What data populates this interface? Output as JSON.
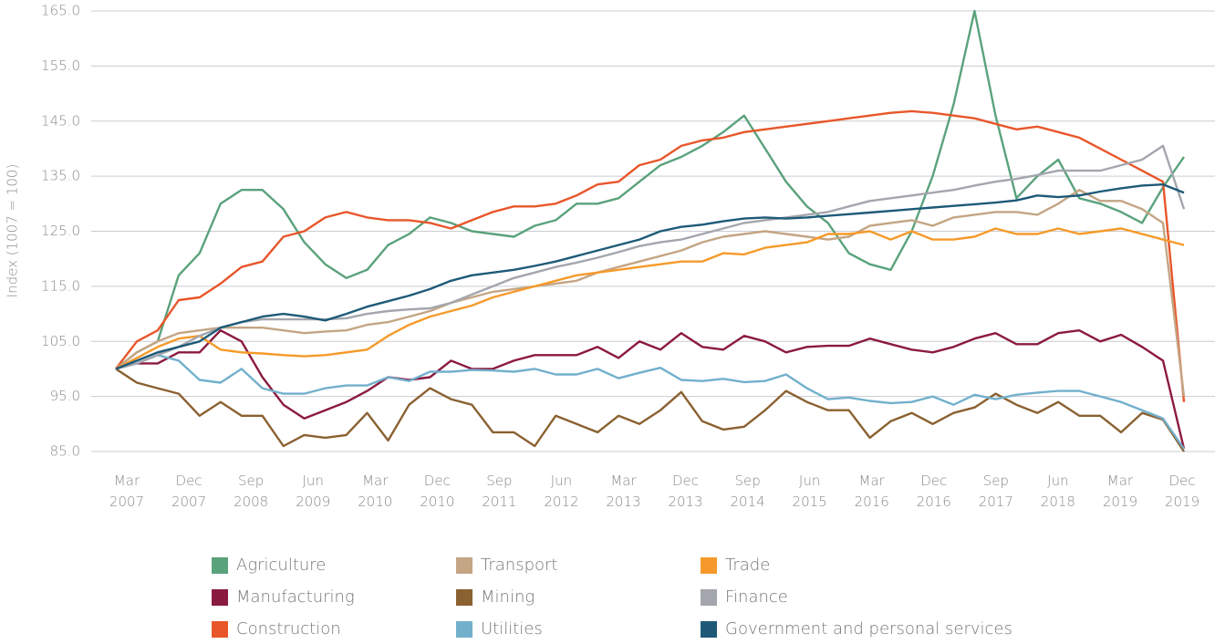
{
  "chart_data": {
    "type": "line",
    "ylabel": "Index (1007 = 100)",
    "categories": [
      "Mar 2007",
      null,
      null,
      "Dec 2007",
      null,
      null,
      "Sep 2008",
      null,
      null,
      "Jun 2009",
      null,
      null,
      "Mar 2010",
      null,
      null,
      "Dec 2010",
      null,
      null,
      "Sep 2011",
      null,
      null,
      "Jun 2012",
      null,
      null,
      "Mar 2013",
      null,
      null,
      "Dec 2013",
      null,
      null,
      "Sep 2014",
      null,
      null,
      "Jun 2015",
      null,
      null,
      "Mar 2016",
      null,
      null,
      "Dec 2016",
      null,
      null,
      "Sep 2017",
      null,
      null,
      "Jun 2018",
      null,
      null,
      "Mar 2019",
      null,
      null,
      "Dec 2019"
    ],
    "ylim": [
      85,
      165
    ],
    "yticks": [
      {
        "value": 85,
        "label": "85.0"
      },
      {
        "value": 95,
        "label": "95.0"
      },
      {
        "value": 105,
        "label": "105.0"
      },
      {
        "value": 115,
        "label": "115.0"
      },
      {
        "value": 125,
        "label": "125.0"
      },
      {
        "value": 135,
        "label": "135.0"
      },
      {
        "value": 145,
        "label": "145.0"
      },
      {
        "value": 155,
        "label": "155.0"
      },
      {
        "value": 165,
        "label": "165.0"
      }
    ],
    "grid": true,
    "series": [
      {
        "name": "Agriculture",
        "color": "#5aa27c",
        "values": [
          100,
          103,
          105,
          117,
          121,
          130,
          132.5,
          132.5,
          129,
          123,
          119,
          116.5,
          118,
          122.5,
          124.5,
          127.5,
          126.5,
          125,
          124.5,
          124,
          126,
          127,
          130,
          130,
          131,
          134,
          137,
          138.5,
          140.5,
          143,
          146,
          140,
          134,
          129.5,
          126.5,
          121,
          119,
          118,
          125,
          135,
          148,
          165,
          146,
          131,
          135,
          138,
          131,
          130,
          128.5,
          126.5,
          133,
          138.5
        ]
      },
      {
        "name": "Manufacturing",
        "color": "#8b1a3f",
        "values": [
          100,
          101,
          101,
          103,
          103,
          107,
          105,
          98.5,
          93.5,
          91,
          92.5,
          94,
          96,
          98.5,
          98,
          98.5,
          101.5,
          100,
          100,
          101.5,
          102.5,
          102.5,
          102.5,
          104,
          102,
          105,
          103.5,
          106.5,
          104,
          103.5,
          106,
          105,
          103,
          104,
          104.2,
          104.2,
          105.5,
          104.5,
          103.5,
          103,
          104,
          105.5,
          106.5,
          104.5,
          104.5,
          106.5,
          107,
          105,
          106.2,
          104,
          101.5,
          85.5
        ]
      },
      {
        "name": "Construction",
        "color": "#e8562a",
        "values": [
          100,
          105,
          107,
          112.5,
          113,
          115.5,
          118.5,
          119.5,
          124,
          125,
          127.5,
          128.5,
          127.5,
          127,
          127,
          126.5,
          125.5,
          127,
          128.5,
          129.5,
          129.5,
          130,
          131.5,
          133.5,
          134,
          137,
          138,
          140.5,
          141.5,
          142,
          143,
          143.5,
          144,
          144.5,
          145,
          145.5,
          146,
          146.5,
          146.8,
          146.5,
          146,
          145.5,
          144.5,
          143.5,
          144,
          143,
          142,
          140,
          138,
          136,
          134,
          94
        ]
      },
      {
        "name": "Transport",
        "color": "#c4a584",
        "values": [
          100,
          103,
          105,
          106.5,
          107,
          107.5,
          107.5,
          107.5,
          107,
          106.5,
          106.8,
          107,
          108,
          108.5,
          109.5,
          110.5,
          112,
          113,
          114,
          114.5,
          115,
          115.5,
          116,
          117.5,
          118.5,
          119.5,
          120.5,
          121.5,
          123,
          124,
          124.5,
          125,
          124.5,
          124,
          123.5,
          124,
          126,
          126.5,
          127,
          126,
          127.5,
          128,
          128.5,
          128.5,
          128,
          130,
          132.5,
          130.5,
          130.5,
          129,
          126.5,
          95
        ]
      },
      {
        "name": "Mining",
        "color": "#8a6131",
        "values": [
          100,
          97.5,
          96.5,
          95.5,
          91.5,
          94,
          91.5,
          91.5,
          86,
          88,
          87.5,
          88,
          92,
          87,
          93.5,
          96.5,
          94.5,
          93.5,
          88.5,
          88.5,
          86,
          91.5,
          90,
          88.5,
          91.5,
          90,
          92.5,
          95.8,
          90.5,
          89,
          89.5,
          92.5,
          96,
          94,
          92.5,
          92.5,
          87.5,
          90.5,
          92,
          90,
          92,
          93,
          95.5,
          93.5,
          92,
          94,
          91.5,
          91.5,
          88.5,
          92,
          90.8,
          85
        ]
      },
      {
        "name": "Utilities",
        "color": "#72b0cc",
        "values": [
          100,
          101,
          102.5,
          101.5,
          98,
          97.5,
          100,
          96.5,
          95.5,
          95.5,
          96.5,
          97,
          97,
          98.5,
          97.8,
          99.5,
          99.5,
          99.8,
          99.7,
          99.5,
          100,
          99,
          99,
          100,
          98.3,
          99.3,
          100.2,
          98,
          97.8,
          98.2,
          97.6,
          97.8,
          99,
          96.5,
          94.5,
          94.8,
          94.2,
          93.8,
          94,
          95,
          93.5,
          95.3,
          94.5,
          95.3,
          95.7,
          96,
          96,
          95,
          94,
          92.5,
          91,
          85.5
        ]
      },
      {
        "name": "Trade",
        "color": "#f59a2a",
        "values": [
          100,
          102,
          104,
          105.5,
          106,
          103.5,
          103,
          102.8,
          102.5,
          102.3,
          102.5,
          103,
          103.5,
          106,
          108,
          109.5,
          110.5,
          111.5,
          113,
          114,
          115,
          116,
          117,
          117.5,
          118,
          118.5,
          119,
          119.5,
          119.5,
          121,
          120.8,
          122,
          122.5,
          123,
          124.5,
          124.5,
          125,
          123.5,
          125,
          123.5,
          123.5,
          124,
          125.5,
          124.5,
          124.5,
          125.5,
          124.5,
          125,
          125.5,
          124.5,
          123.5,
          122.5
        ]
      },
      {
        "name": "Finance",
        "color": "#a3a6ad",
        "values": [
          100,
          101,
          102.5,
          104,
          106,
          107.5,
          108.5,
          109,
          109,
          109,
          109,
          109.2,
          110,
          110.5,
          110.8,
          111,
          112,
          113.5,
          115,
          116.5,
          117.5,
          118.5,
          119.3,
          120.2,
          121.2,
          122.3,
          123,
          123.5,
          124.5,
          125.5,
          126.5,
          127,
          127.5,
          128,
          128.5,
          129.5,
          130.5,
          131,
          131.5,
          132,
          132.5,
          133.3,
          134,
          134.5,
          135.2,
          136,
          136,
          136,
          137,
          138,
          140.5,
          129
        ]
      },
      {
        "name": "Government and personal services",
        "color": "#1e5a78",
        "values": [
          100,
          101.5,
          103,
          104,
          105,
          107.5,
          108.5,
          109.5,
          110,
          109.5,
          108.8,
          110,
          111.3,
          112.3,
          113.3,
          114.5,
          116,
          117,
          117.5,
          118,
          118.7,
          119.5,
          120.5,
          121.5,
          122.5,
          123.5,
          125,
          125.8,
          126.2,
          126.8,
          127.3,
          127.5,
          127.3,
          127.5,
          127.8,
          128.1,
          128.4,
          128.7,
          129,
          129.3,
          129.6,
          129.9,
          130.2,
          130.6,
          131.5,
          131.2,
          131.5,
          132.2,
          132.8,
          133.3,
          133.5,
          132
        ]
      }
    ]
  }
}
